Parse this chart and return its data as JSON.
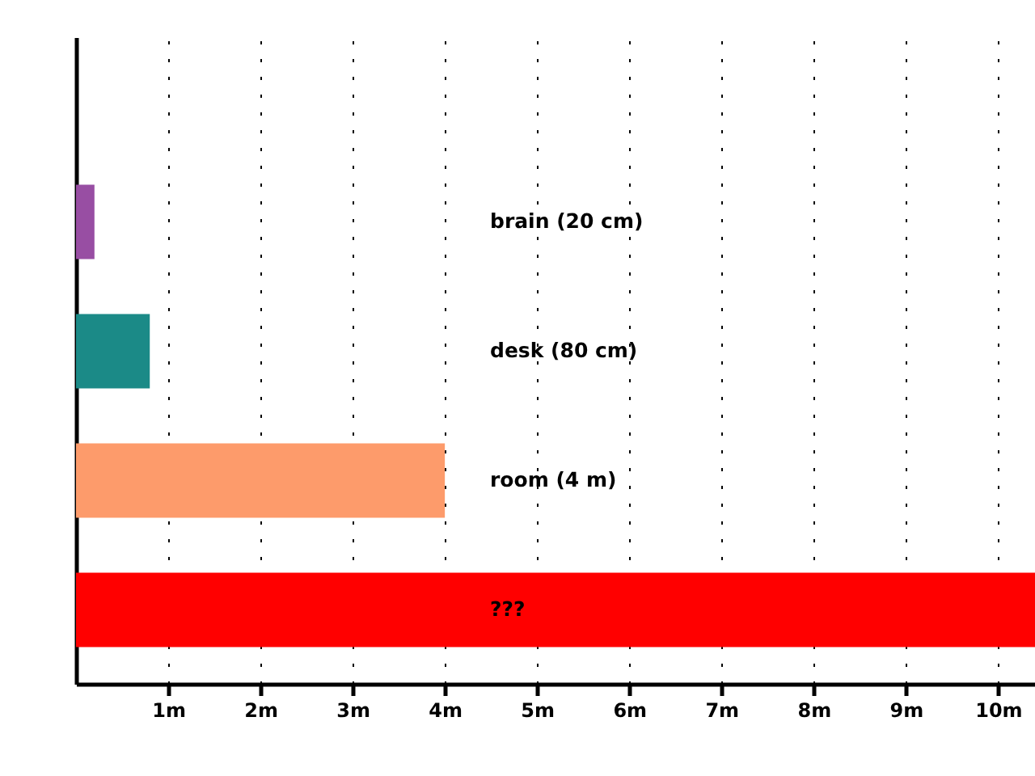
{
  "chart_data": {
    "type": "bar",
    "orientation": "horizontal",
    "categories": [
      "brain (20 cm)",
      "desk (80 cm)",
      "room (4 m)",
      "???"
    ],
    "values": [
      0.2,
      0.8,
      4,
      10.4
    ],
    "colors": [
      "#984ea3",
      "#1b8a87",
      "#fd9b6b",
      "#ff0000"
    ],
    "xlim": [
      0,
      10.4
    ],
    "xticks": [
      {
        "value": 1,
        "label": "1m"
      },
      {
        "value": 2,
        "label": "2m"
      },
      {
        "value": 3,
        "label": "3m"
      },
      {
        "value": 4,
        "label": "4m"
      },
      {
        "value": 5,
        "label": "5m"
      },
      {
        "value": 6,
        "label": "6m"
      },
      {
        "value": 7,
        "label": "7m"
      },
      {
        "value": 8,
        "label": "8m"
      },
      {
        "value": 9,
        "label": "9m"
      },
      {
        "value": 10,
        "label": "10m"
      }
    ],
    "grid": "x",
    "tick_labels": "x"
  }
}
